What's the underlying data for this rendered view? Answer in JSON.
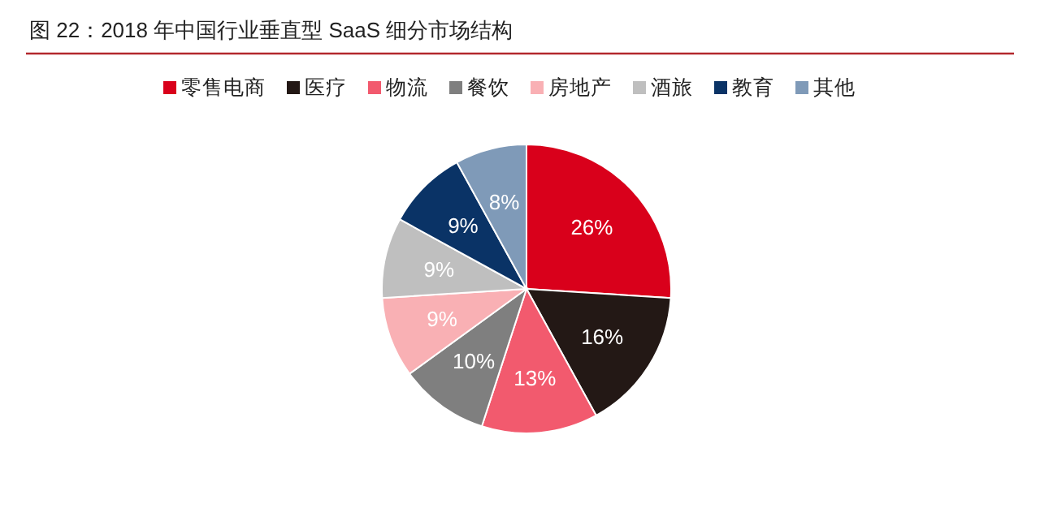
{
  "chart_data": {
    "type": "pie",
    "title": "图 22：2018 年中国行业垂直型 SaaS 细分市场结构",
    "categories": [
      "零售电商",
      "医疗",
      "物流",
      "餐饮",
      "房地产",
      "酒旅",
      "教育",
      "其他"
    ],
    "values": [
      26,
      16,
      13,
      10,
      9,
      9,
      9,
      8
    ],
    "colors": [
      "#d9001b",
      "#231815",
      "#f25a6e",
      "#7f7f7f",
      "#f9b0b4",
      "#bfbfbf",
      "#0a3366",
      "#7f9ab8"
    ],
    "value_labels": [
      "26%",
      "16%",
      "13%",
      "10%",
      "9%",
      "9%",
      "9%",
      "8%"
    ],
    "legend": "top"
  }
}
